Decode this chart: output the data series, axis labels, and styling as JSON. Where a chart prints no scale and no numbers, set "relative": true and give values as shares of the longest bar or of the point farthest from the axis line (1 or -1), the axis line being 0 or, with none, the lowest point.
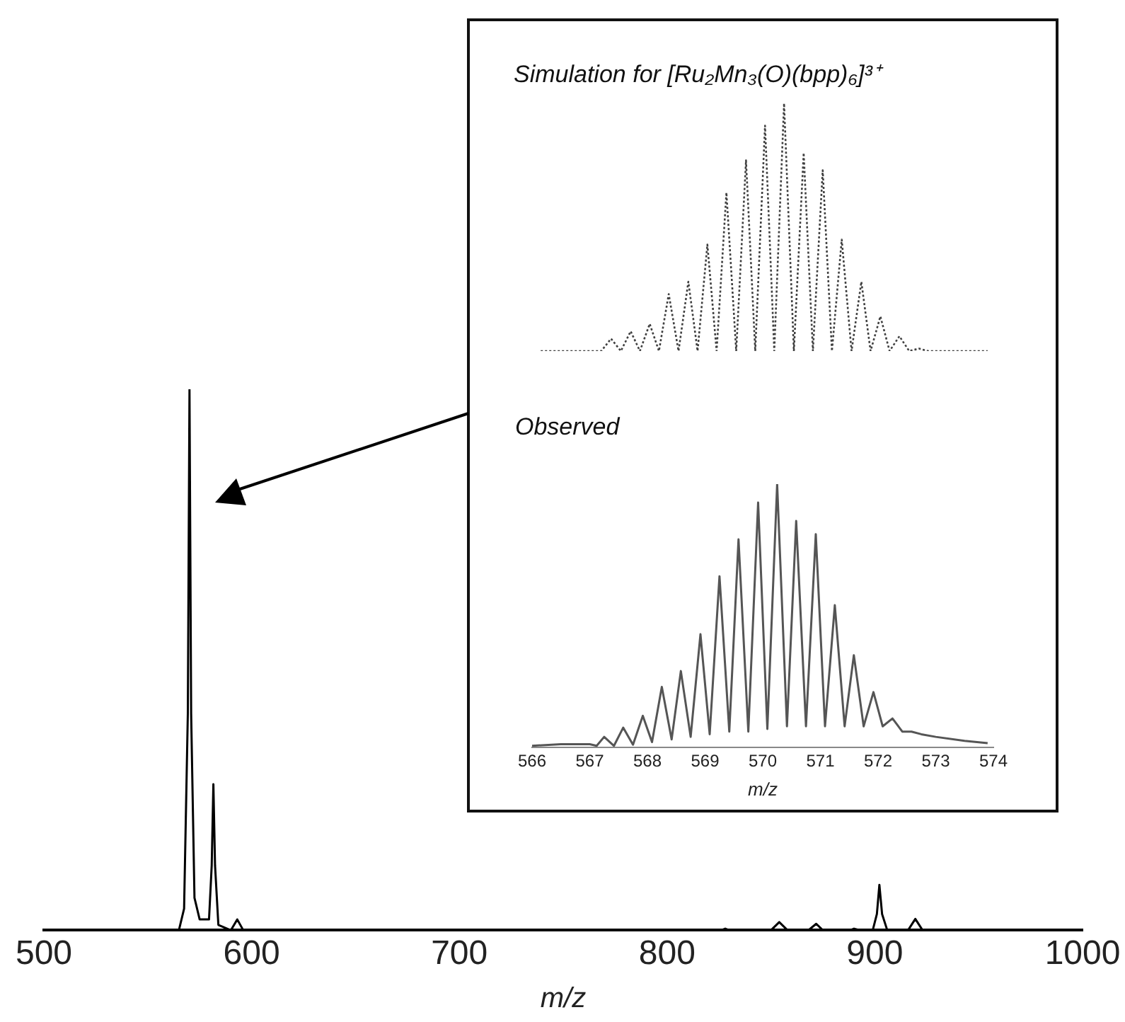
{
  "chart_data": [
    {
      "type": "line",
      "xlabel": "m/z",
      "relative": true,
      "xlim": [
        500,
        1000
      ],
      "xticks": [
        500,
        600,
        700,
        800,
        900,
        1000
      ],
      "x": [
        500,
        545,
        565,
        567.5,
        569.3,
        570.1,
        570.9,
        572.5,
        575,
        579.5,
        580.8,
        581.6,
        582.4,
        584,
        590,
        593.1,
        596,
        605,
        826,
        828,
        830,
        850,
        854,
        858,
        868,
        871.8,
        875,
        888,
        890,
        893,
        899,
        901,
        902.2,
        903.5,
        906,
        916,
        919.5,
        923,
        1000
      ],
      "series": [
        {
          "color": "#000000",
          "values": [
            0,
            0,
            0,
            0.04,
            0.4,
            1,
            0.4,
            0.06,
            0.02,
            0.02,
            0.12,
            0.27,
            0.12,
            0.01,
            0,
            0.02,
            0,
            0,
            0,
            0.003,
            0,
            0,
            0.015,
            0,
            0,
            0.012,
            0,
            0,
            0.003,
            0,
            0,
            0.03,
            0.084,
            0.03,
            0,
            0,
            0.021,
            0,
            0
          ]
        }
      ]
    },
    {
      "type": "line",
      "title": "Simulation for [Ru₂Mn₃(O)(bpp)₆]³⁺",
      "relative": true,
      "tick_labels": false,
      "line_style": "dotted",
      "xlim": [
        566,
        574
      ],
      "x": [
        566.15,
        567.2,
        567.37,
        567.54,
        567.71,
        567.87,
        568.04,
        568.2,
        568.37,
        568.54,
        568.71,
        568.87,
        569.04,
        569.2,
        569.37,
        569.54,
        569.71,
        569.87,
        570.04,
        570.2,
        570.37,
        570.54,
        570.71,
        570.87,
        571.04,
        571.2,
        571.37,
        571.54,
        571.71,
        571.87,
        572.04,
        572.2,
        572.37,
        572.54,
        572.71,
        572.87,
        573.9
      ],
      "series": [
        {
          "color": "#404040",
          "values": [
            0,
            0,
            0.05,
            0,
            0.08,
            0,
            0.11,
            0,
            0.23,
            0,
            0.28,
            0,
            0.43,
            0,
            0.64,
            0,
            0.77,
            0,
            0.91,
            0,
            1,
            0,
            0.8,
            0,
            0.73,
            0,
            0.45,
            0,
            0.28,
            0,
            0.14,
            0,
            0.06,
            0,
            0.01,
            0,
            0
          ]
        }
      ]
    },
    {
      "type": "line",
      "title": "Observed",
      "xlabel": "m/z",
      "relative": true,
      "xlim": [
        566,
        574
      ],
      "xticks": [
        566,
        567,
        568,
        569,
        570,
        571,
        572,
        573,
        574
      ],
      "x": [
        566,
        566.5,
        567,
        567.12,
        567.25,
        567.42,
        567.58,
        567.75,
        567.92,
        568.08,
        568.25,
        568.42,
        568.58,
        568.75,
        568.92,
        569.08,
        569.25,
        569.42,
        569.58,
        569.75,
        569.92,
        570.08,
        570.25,
        570.42,
        570.58,
        570.75,
        570.92,
        571.08,
        571.25,
        571.42,
        571.58,
        571.75,
        571.92,
        572.08,
        572.25,
        572.42,
        572.58,
        572.75,
        573,
        573.5,
        573.9
      ],
      "series": [
        {
          "color": "#555555",
          "values": [
            0.006,
            0.012,
            0.012,
            0.006,
            0.04,
            0.006,
            0.075,
            0.01,
            0.12,
            0.02,
            0.23,
            0.03,
            0.29,
            0.04,
            0.43,
            0.05,
            0.65,
            0.06,
            0.79,
            0.06,
            0.93,
            0.07,
            1,
            0.08,
            0.86,
            0.08,
            0.81,
            0.08,
            0.54,
            0.08,
            0.35,
            0.08,
            0.21,
            0.08,
            0.11,
            0.06,
            0.06,
            0.05,
            0.04,
            0.025,
            0.016
          ]
        }
      ]
    }
  ]
}
